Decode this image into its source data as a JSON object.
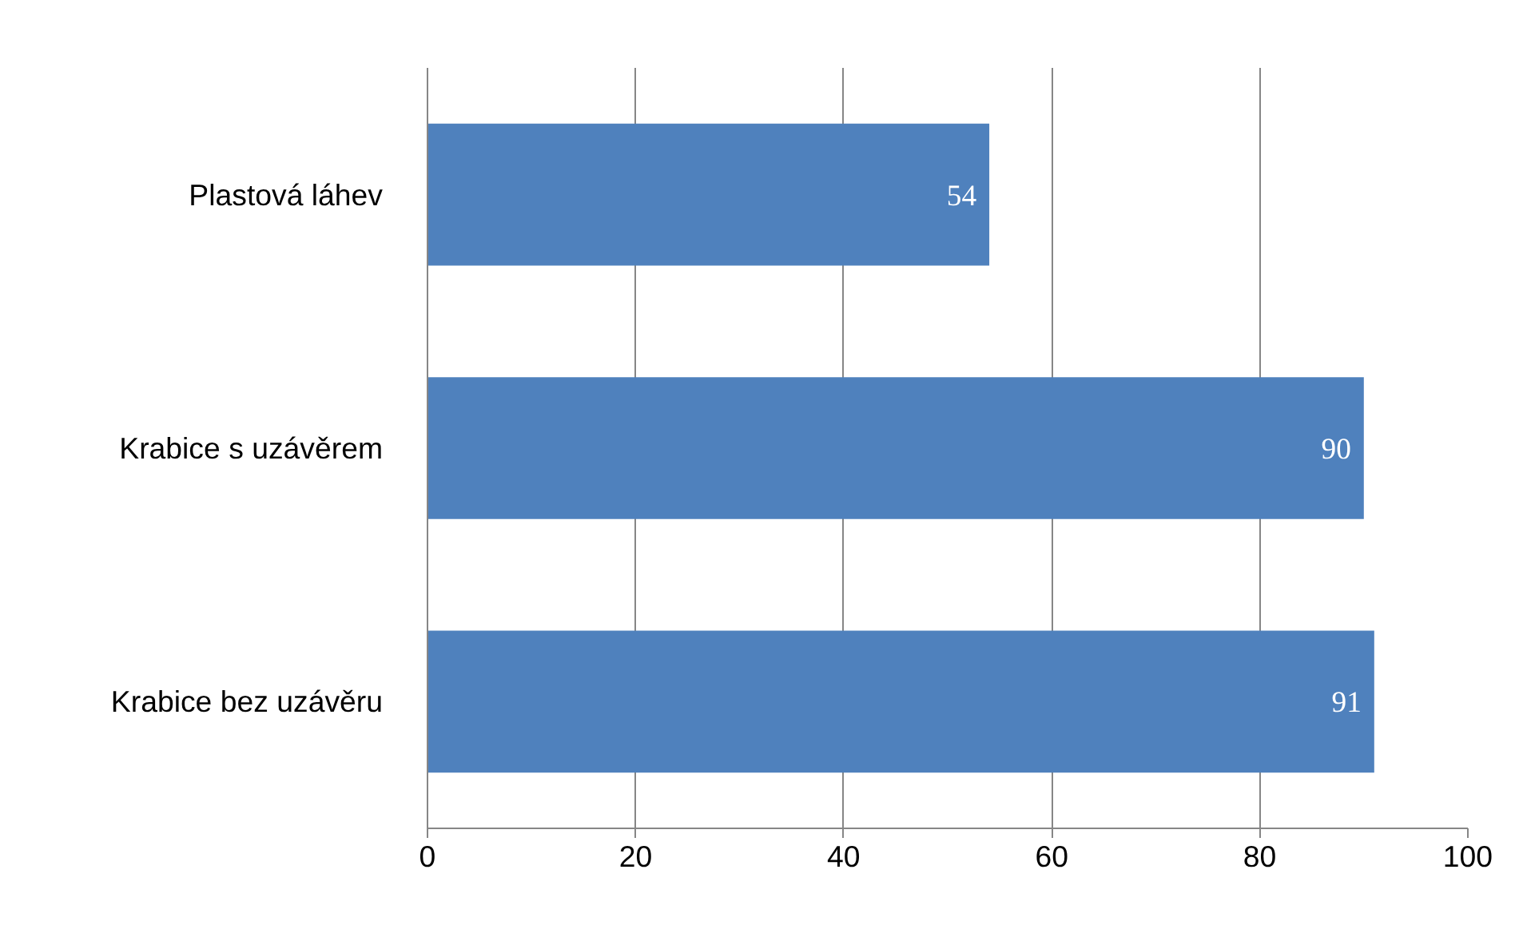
{
  "chart_data": {
    "type": "bar",
    "orientation": "horizontal",
    "categories": [
      "Plastová láhev",
      "Krabice s uzávěrem",
      "Krabice bez uzávěru"
    ],
    "values": [
      54,
      90,
      91
    ],
    "color": "#4f81bd",
    "xlim": [
      0,
      100
    ],
    "xticks": [
      0,
      20,
      40,
      60,
      80,
      100
    ],
    "grid": "x",
    "data_labels": true
  }
}
